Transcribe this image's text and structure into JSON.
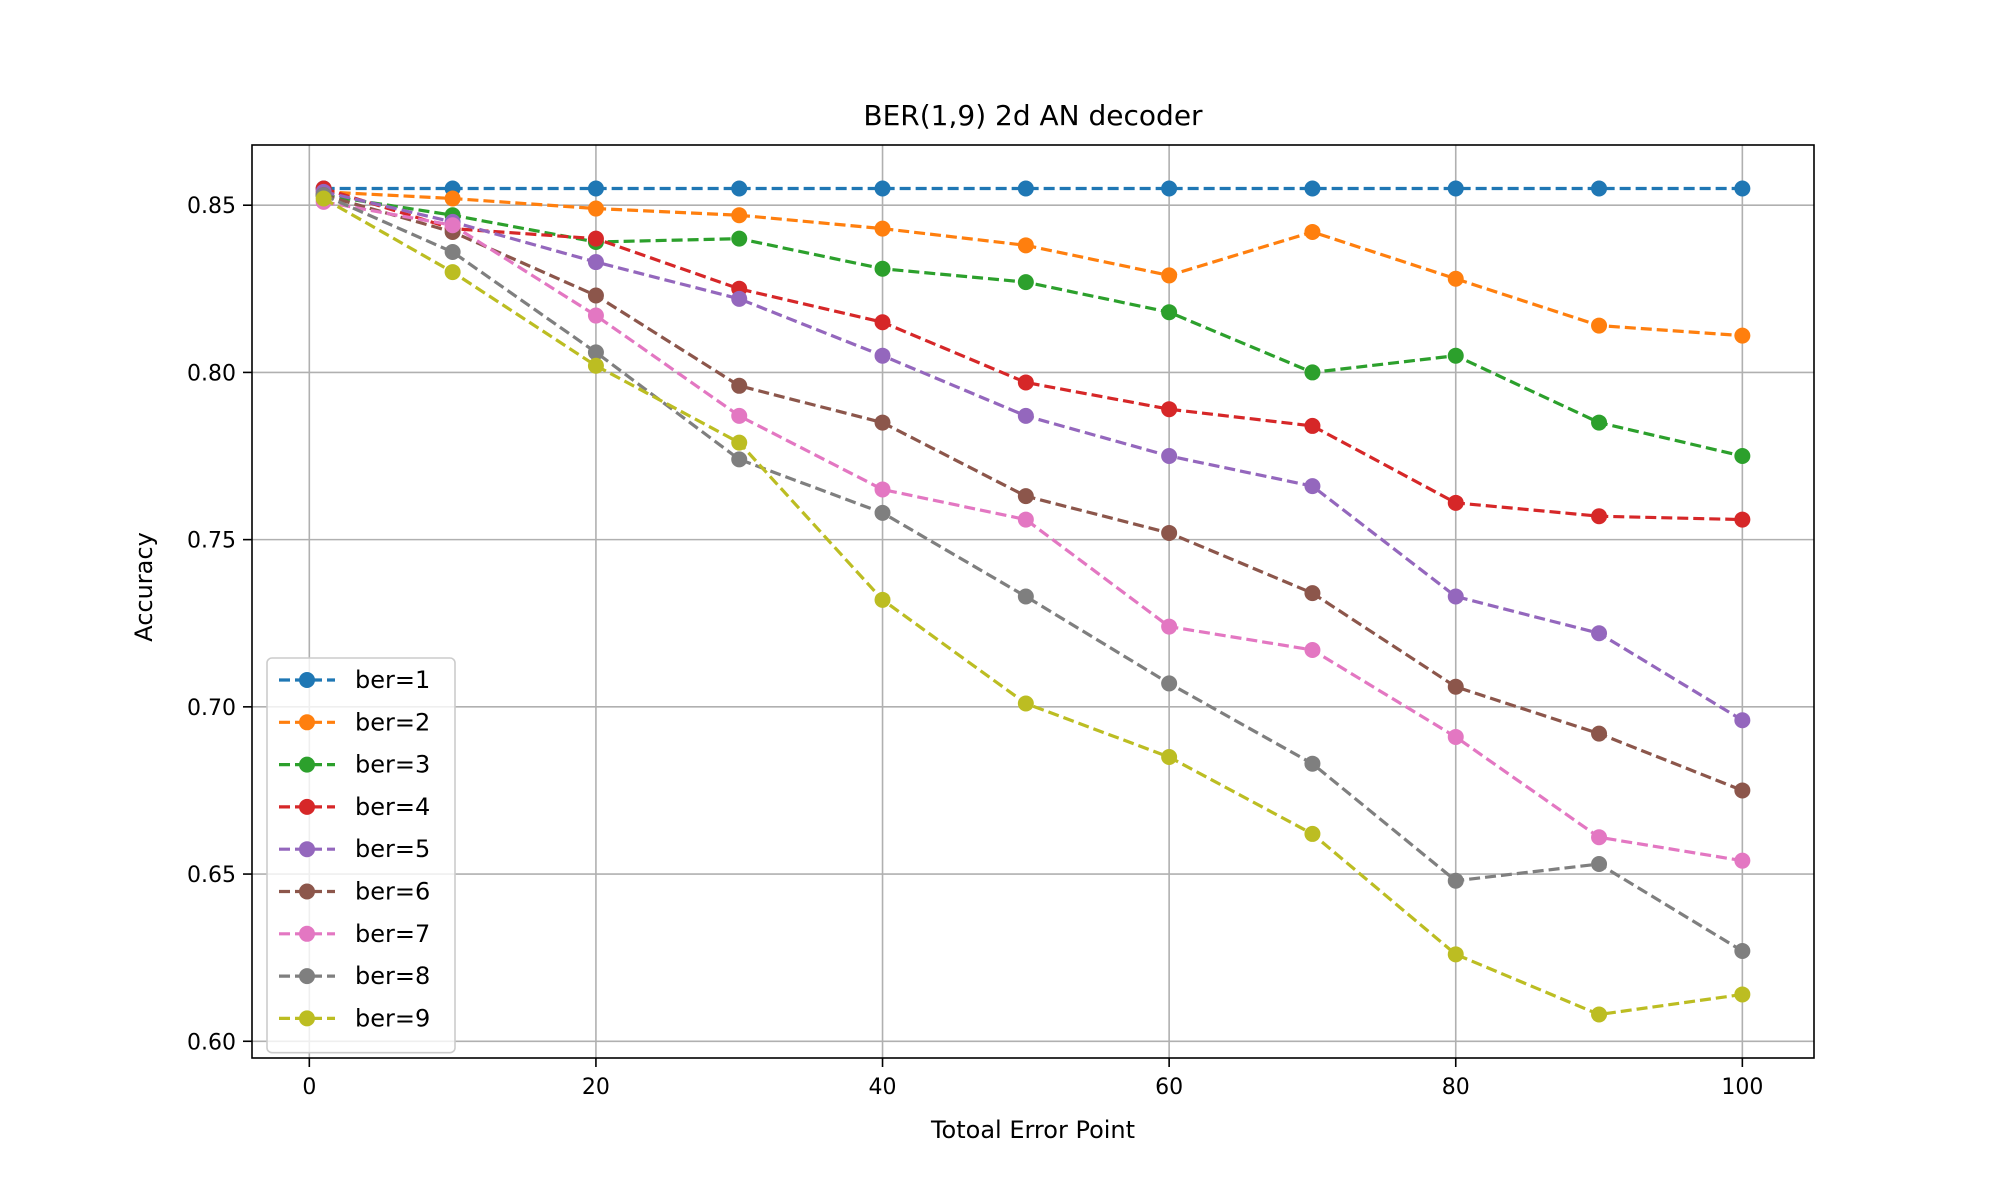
{
  "chart_data": {
    "type": "line",
    "title": "BER(1,9) 2d AN decoder",
    "xlabel": "Totoal Error Point",
    "ylabel": "Accuracy",
    "x": [
      1,
      10,
      20,
      30,
      40,
      50,
      60,
      70,
      80,
      90,
      100
    ],
    "xlim": [
      -4,
      105
    ],
    "ylim": [
      0.595,
      0.868
    ],
    "xticks": [
      0,
      20,
      40,
      60,
      80,
      100
    ],
    "yticks": [
      0.6,
      0.65,
      0.7,
      0.75,
      0.8,
      0.85
    ],
    "xtick_labels": [
      "0",
      "20",
      "40",
      "60",
      "80",
      "100"
    ],
    "ytick_labels": [
      "0.60",
      "0.65",
      "0.70",
      "0.75",
      "0.80",
      "0.85"
    ],
    "grid": true,
    "legend_position": "lower-left",
    "line_style": "dashed",
    "marker": "circle",
    "series": [
      {
        "name": "ber=1",
        "color": "#1f77b4",
        "values": [
          0.855,
          0.855,
          0.855,
          0.855,
          0.855,
          0.855,
          0.855,
          0.855,
          0.855,
          0.855,
          0.855
        ]
      },
      {
        "name": "ber=2",
        "color": "#ff7f0e",
        "values": [
          0.854,
          0.852,
          0.849,
          0.847,
          0.843,
          0.838,
          0.829,
          0.842,
          0.828,
          0.814,
          0.811
        ]
      },
      {
        "name": "ber=3",
        "color": "#2ca02c",
        "values": [
          0.853,
          0.847,
          0.839,
          0.84,
          0.831,
          0.827,
          0.818,
          0.8,
          0.805,
          0.785,
          0.775
        ]
      },
      {
        "name": "ber=4",
        "color": "#d62728",
        "values": [
          0.855,
          0.843,
          0.84,
          0.825,
          0.815,
          0.797,
          0.789,
          0.784,
          0.761,
          0.757,
          0.756
        ]
      },
      {
        "name": "ber=5",
        "color": "#9467bd",
        "values": [
          0.854,
          0.845,
          0.833,
          0.822,
          0.805,
          0.787,
          0.775,
          0.766,
          0.733,
          0.722,
          0.696
        ]
      },
      {
        "name": "ber=6",
        "color": "#8c564b",
        "values": [
          0.853,
          0.842,
          0.823,
          0.796,
          0.785,
          0.763,
          0.752,
          0.734,
          0.706,
          0.692,
          0.675
        ]
      },
      {
        "name": "ber=7",
        "color": "#e377c2",
        "values": [
          0.851,
          0.844,
          0.817,
          0.787,
          0.765,
          0.756,
          0.724,
          0.717,
          0.691,
          0.661,
          0.654
        ]
      },
      {
        "name": "ber=8",
        "color": "#7f7f7f",
        "values": [
          0.853,
          0.836,
          0.806,
          0.774,
          0.758,
          0.733,
          0.707,
          0.683,
          0.648,
          0.653,
          0.627
        ]
      },
      {
        "name": "ber=9",
        "color": "#bcbd22",
        "values": [
          0.852,
          0.83,
          0.802,
          0.779,
          0.732,
          0.701,
          0.685,
          0.662,
          0.626,
          0.608,
          0.614
        ]
      }
    ]
  }
}
